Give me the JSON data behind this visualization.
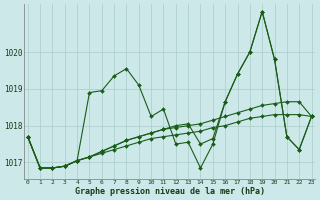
{
  "xlabel": "Graphe pression niveau de la mer (hPa)",
  "background_color": "#cce8e8",
  "grid_color": "#aacccc",
  "line_color": "#1a5c1a",
  "ylim": [
    1016.55,
    1021.3
  ],
  "xlim": [
    -0.3,
    23.3
  ],
  "yticks": [
    1017,
    1018,
    1019,
    1020
  ],
  "xticks": [
    0,
    1,
    2,
    3,
    4,
    5,
    6,
    7,
    8,
    9,
    10,
    11,
    12,
    13,
    14,
    15,
    16,
    17,
    18,
    19,
    20,
    21,
    22,
    23
  ],
  "series": [
    [
      1017.7,
      1016.85,
      1016.85,
      1016.9,
      1017.05,
      1018.9,
      1018.95,
      1019.35,
      1019.55,
      1019.1,
      1018.25,
      1018.45,
      1017.5,
      1017.55,
      1016.85,
      1017.5,
      1018.65,
      1019.4,
      1020.0,
      1021.1,
      1019.8,
      1017.7,
      1017.35,
      1018.25
    ],
    [
      1017.7,
      1016.85,
      1016.85,
      1016.9,
      1017.05,
      1017.15,
      1017.3,
      1017.45,
      1017.6,
      1017.7,
      1017.8,
      1017.9,
      1018.0,
      1018.05,
      1017.5,
      1017.65,
      1018.65,
      1019.4,
      1020.0,
      1021.1,
      1019.8,
      1017.7,
      1017.35,
      1018.25
    ],
    [
      1017.7,
      1016.85,
      1016.85,
      1016.9,
      1017.05,
      1017.15,
      1017.3,
      1017.45,
      1017.6,
      1017.7,
      1017.8,
      1017.9,
      1017.95,
      1018.0,
      1018.05,
      1018.15,
      1018.25,
      1018.35,
      1018.45,
      1018.55,
      1018.6,
      1018.65,
      1018.65,
      1018.25
    ],
    [
      1017.7,
      1016.85,
      1016.85,
      1016.9,
      1017.05,
      1017.15,
      1017.25,
      1017.35,
      1017.45,
      1017.55,
      1017.65,
      1017.7,
      1017.75,
      1017.8,
      1017.85,
      1017.95,
      1018.0,
      1018.1,
      1018.2,
      1018.25,
      1018.3,
      1018.3,
      1018.3,
      1018.25
    ]
  ]
}
